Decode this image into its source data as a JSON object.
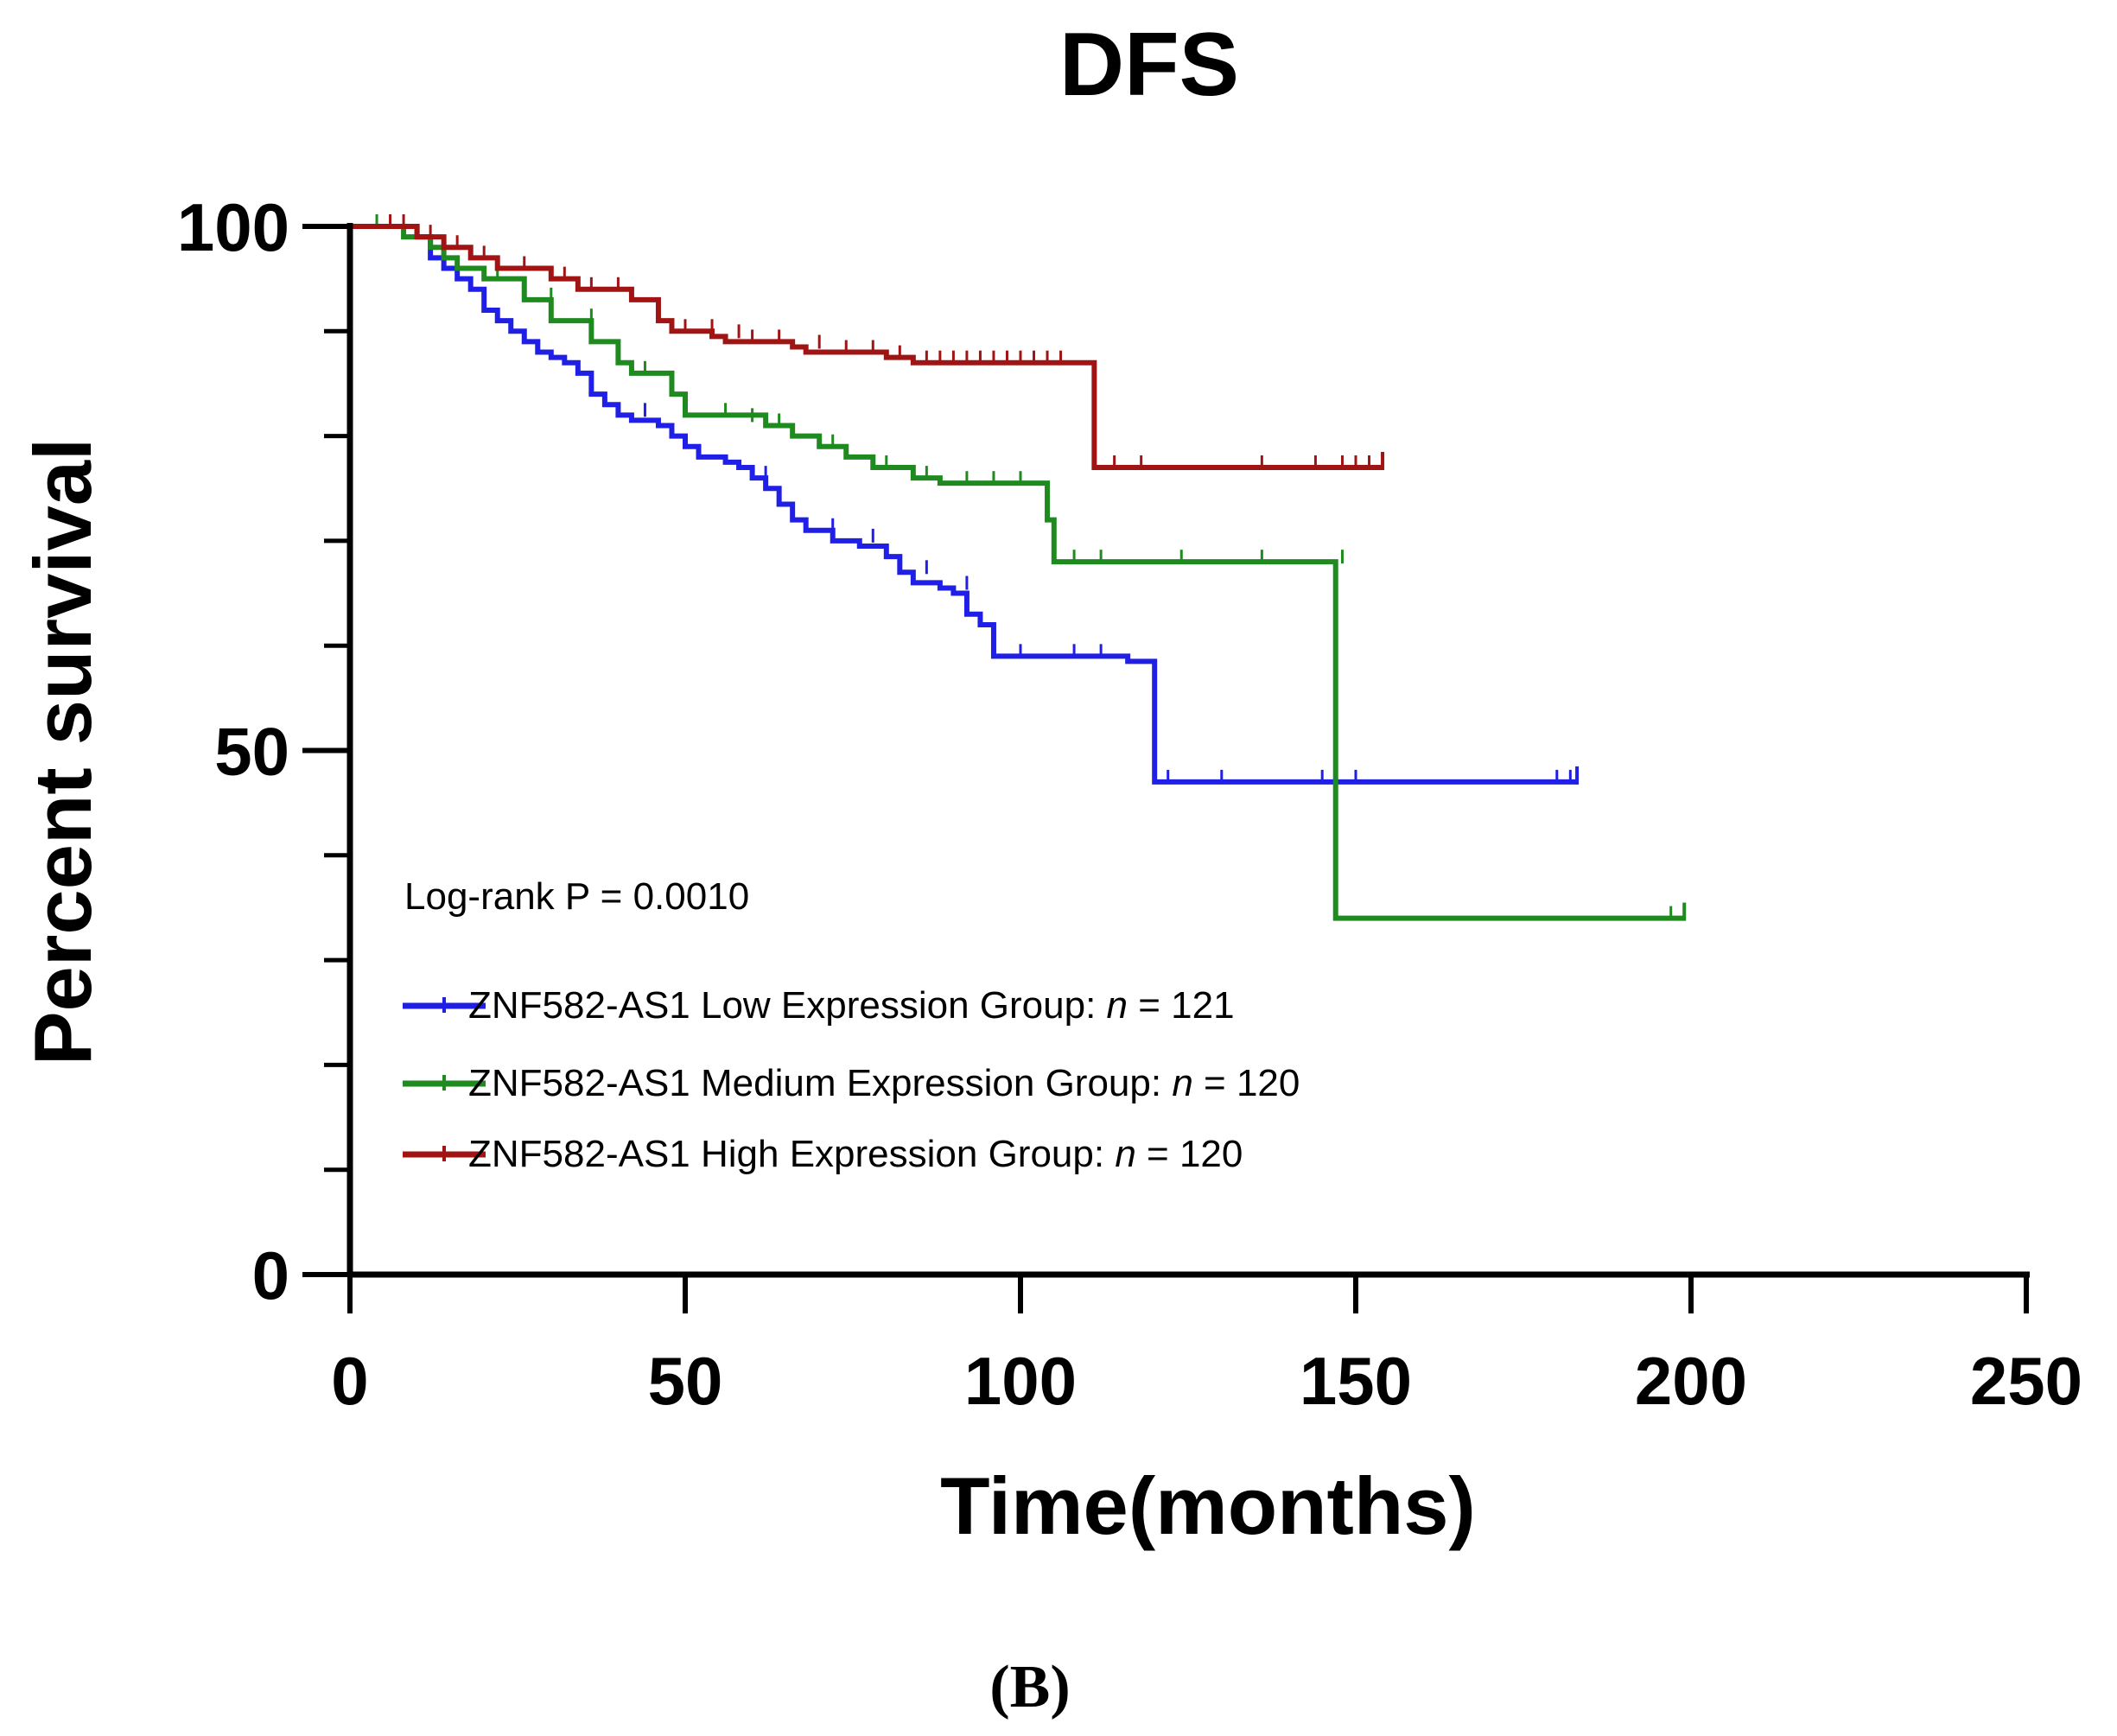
{
  "chart_data": {
    "type": "line",
    "subtype": "kaplan-meier",
    "title": "DFS",
    "xlabel": "Time(months)",
    "ylabel": "Percent survival",
    "xlim": [
      0,
      250
    ],
    "ylim": [
      0,
      100
    ],
    "xticks": [
      0,
      50,
      100,
      150,
      200,
      250
    ],
    "yticks": [
      0,
      50,
      100
    ],
    "yminor": [
      10,
      20,
      30,
      40,
      60,
      70,
      80,
      90
    ],
    "annotation": "Log-rank P = 0.0010",
    "panel_label": "(B)",
    "legend_position": "lower-left",
    "series": [
      {
        "name": "ZNF582-AS1 Low Expression Group",
        "n_label": "n",
        "n_value": "= 121",
        "color": "#1f1fe6",
        "steps": [
          [
            0,
            100
          ],
          [
            10,
            99
          ],
          [
            12,
            97
          ],
          [
            14,
            96
          ],
          [
            16,
            95
          ],
          [
            18,
            94
          ],
          [
            20,
            92
          ],
          [
            22,
            91
          ],
          [
            24,
            90
          ],
          [
            26,
            89
          ],
          [
            28,
            88
          ],
          [
            30,
            87.5
          ],
          [
            32,
            87
          ],
          [
            34,
            86
          ],
          [
            36,
            84
          ],
          [
            38,
            83
          ],
          [
            40,
            82
          ],
          [
            42,
            81.5
          ],
          [
            46,
            81
          ],
          [
            48,
            80
          ],
          [
            50,
            79
          ],
          [
            52,
            78
          ],
          [
            56,
            77.5
          ],
          [
            58,
            77
          ],
          [
            60,
            76
          ],
          [
            62,
            75
          ],
          [
            64,
            73.5
          ],
          [
            66,
            72
          ],
          [
            68,
            71
          ],
          [
            72,
            70
          ],
          [
            76,
            69.5
          ],
          [
            80,
            68.5
          ],
          [
            82,
            67
          ],
          [
            84,
            66
          ],
          [
            88,
            65.5
          ],
          [
            90,
            65
          ],
          [
            92,
            63
          ],
          [
            94,
            62
          ],
          [
            96,
            59
          ],
          [
            102,
            59
          ],
          [
            116,
            58.5
          ],
          [
            120,
            47
          ],
          [
            183,
            47
          ]
        ],
        "censors": [
          [
            44,
            82
          ],
          [
            62,
            76
          ],
          [
            72,
            71
          ],
          [
            78,
            70
          ],
          [
            86,
            67
          ],
          [
            92,
            65.5
          ],
          [
            100,
            59
          ],
          [
            108,
            59
          ],
          [
            112,
            59
          ],
          [
            122,
            47
          ],
          [
            130,
            47
          ],
          [
            145,
            47
          ],
          [
            150,
            47
          ],
          [
            180,
            47
          ],
          [
            182,
            47
          ]
        ],
        "end": [
          183,
          47
        ]
      },
      {
        "name": "ZNF582-AS1 Medium Expression Group",
        "n_label": "n",
        "n_value": "= 120",
        "color": "#1f8a1f",
        "steps": [
          [
            0,
            100
          ],
          [
            5,
            100
          ],
          [
            8,
            99
          ],
          [
            12,
            98
          ],
          [
            14,
            97
          ],
          [
            16,
            96
          ],
          [
            20,
            95
          ],
          [
            26,
            93
          ],
          [
            30,
            91
          ],
          [
            36,
            89
          ],
          [
            40,
            87
          ],
          [
            42,
            86
          ],
          [
            48,
            84
          ],
          [
            50,
            82
          ],
          [
            62,
            81
          ],
          [
            66,
            80
          ],
          [
            70,
            79
          ],
          [
            74,
            78
          ],
          [
            78,
            77
          ],
          [
            84,
            76
          ],
          [
            88,
            75.5
          ],
          [
            104,
            72
          ],
          [
            105,
            68
          ],
          [
            146,
            68
          ],
          [
            147,
            34
          ],
          [
            199,
            34
          ]
        ],
        "censors": [
          [
            4,
            100
          ],
          [
            14,
            98
          ],
          [
            22,
            95
          ],
          [
            30,
            93
          ],
          [
            36,
            91
          ],
          [
            44,
            86
          ],
          [
            56,
            82
          ],
          [
            60,
            81.5
          ],
          [
            64,
            81
          ],
          [
            72,
            79
          ],
          [
            80,
            77
          ],
          [
            86,
            76
          ],
          [
            92,
            75.5
          ],
          [
            96,
            75.5
          ],
          [
            100,
            75.5
          ],
          [
            108,
            68
          ],
          [
            112,
            68
          ],
          [
            124,
            68
          ],
          [
            136,
            68
          ],
          [
            148,
            68
          ],
          [
            197,
            34
          ]
        ],
        "end": [
          199,
          34
        ]
      },
      {
        "name": "ZNF582-AS1 High Expression Group",
        "n_label": "n",
        "n_value": "= 120",
        "color": "#a01414",
        "steps": [
          [
            0,
            100
          ],
          [
            10,
            99
          ],
          [
            14,
            98
          ],
          [
            18,
            97
          ],
          [
            22,
            96
          ],
          [
            30,
            95
          ],
          [
            34,
            94
          ],
          [
            42,
            93
          ],
          [
            46,
            91
          ],
          [
            48,
            90
          ],
          [
            54,
            89.5
          ],
          [
            56,
            89
          ],
          [
            66,
            88.5
          ],
          [
            68,
            88
          ],
          [
            80,
            87.5
          ],
          [
            84,
            87
          ],
          [
            110,
            87
          ],
          [
            111,
            77
          ],
          [
            154,
            77
          ]
        ],
        "censors": [
          [
            6,
            100
          ],
          [
            8,
            100
          ],
          [
            12,
            99
          ],
          [
            16,
            98
          ],
          [
            20,
            97
          ],
          [
            26,
            96
          ],
          [
            32,
            95
          ],
          [
            36,
            94
          ],
          [
            40,
            94
          ],
          [
            50,
            90
          ],
          [
            54,
            90
          ],
          [
            58,
            89.5
          ],
          [
            60,
            89
          ],
          [
            64,
            89
          ],
          [
            70,
            88.5
          ],
          [
            74,
            88
          ],
          [
            78,
            88
          ],
          [
            82,
            87.5
          ],
          [
            86,
            87
          ],
          [
            88,
            87
          ],
          [
            90,
            87
          ],
          [
            92,
            87
          ],
          [
            94,
            87
          ],
          [
            96,
            87
          ],
          [
            98,
            87
          ],
          [
            100,
            87
          ],
          [
            102,
            87
          ],
          [
            104,
            87
          ],
          [
            106,
            87
          ],
          [
            114,
            77
          ],
          [
            118,
            77
          ],
          [
            136,
            77
          ],
          [
            144,
            77
          ],
          [
            148,
            77
          ],
          [
            150,
            77
          ],
          [
            152,
            77
          ],
          [
            154,
            77
          ]
        ],
        "end": [
          154,
          77
        ]
      }
    ]
  }
}
